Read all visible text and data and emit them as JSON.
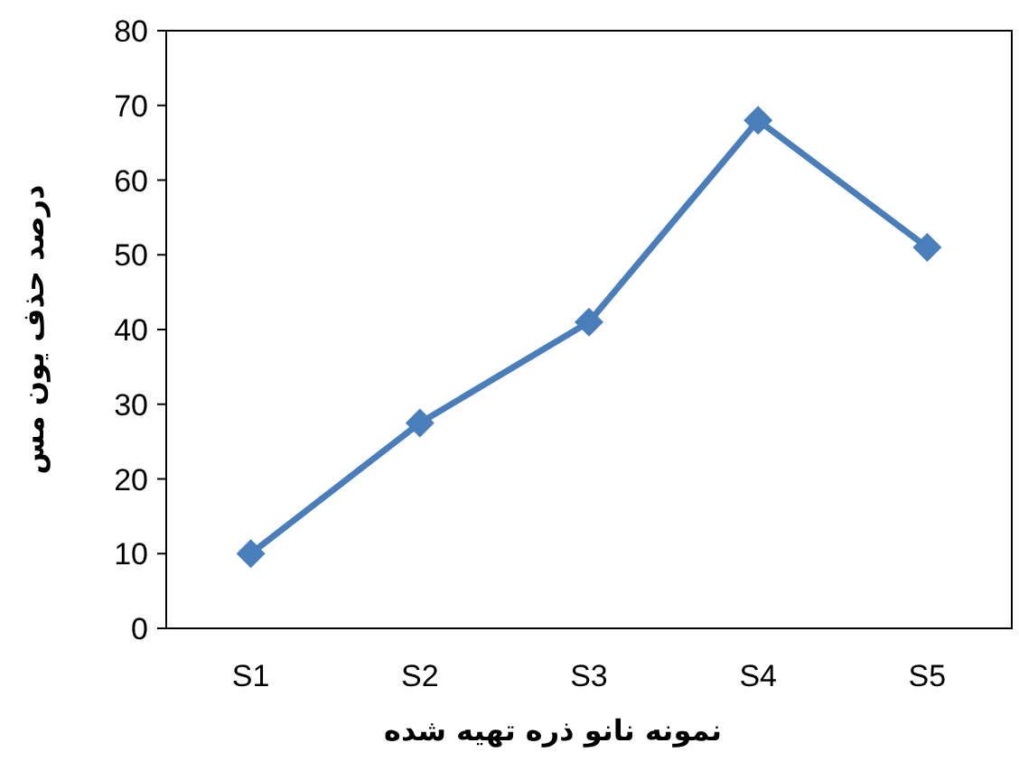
{
  "chart_data": {
    "type": "line",
    "xlabel": "نمونه نانو ذره تهیه شده",
    "ylabel": "درصد حذف یون مس",
    "categories": [
      "S1",
      "S2",
      "S3",
      "S4",
      "S5"
    ],
    "series": [
      {
        "color": "#4a7ebb",
        "values": [
          10,
          27.5,
          41,
          68,
          51
        ]
      }
    ],
    "ylim": [
      0,
      80
    ],
    "yticks": [
      0,
      10,
      20,
      30,
      40,
      50,
      60,
      70,
      80
    ],
    "marker": "diamond",
    "line_style": "solid",
    "grid": false
  }
}
